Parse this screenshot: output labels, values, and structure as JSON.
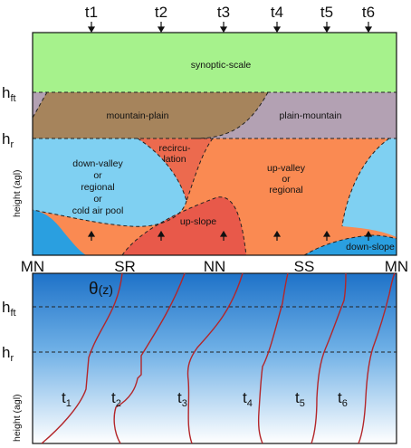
{
  "top_panel": {
    "time_labels": [
      "t1",
      "t2",
      "t3",
      "t4",
      "t5",
      "t6"
    ],
    "y_levels": [
      "h",
      "ft",
      "h",
      "r"
    ],
    "y_axis": "height (agl)",
    "x_labels": [
      "MN",
      "SR",
      "NN",
      "SS",
      "MN"
    ],
    "regions": {
      "synoptic": "synoptic-scale",
      "mountain_plain": "mountain-plain",
      "plain_mountain": "plain-mountain",
      "recirc_1": "recircu-",
      "recirc_2": "lation",
      "down_valley": [
        "down-valley",
        "or",
        "regional",
        "or",
        "cold air pool"
      ],
      "up_valley": [
        "up-valley",
        "or",
        "regional"
      ],
      "up_slope": "up-slope",
      "down_slope": "down-slope"
    },
    "colors": {
      "synoptic": "#a6f28c",
      "mountain_plain_band": "#b3a1b3",
      "mountain_plain": "#a6845c",
      "up_valley": "#fa8a52",
      "down_valley": "#7fd0f2",
      "recirculation": "#ec6a4e",
      "up_slope": "#e8594a",
      "down_slope": "#2a9fe0"
    }
  },
  "bottom_panel": {
    "theta_label": "θ",
    "theta_arg": "(z)",
    "y_levels": [
      "h",
      "ft",
      "h",
      "r"
    ],
    "y_axis": "height (agl)",
    "profile_labels": [
      "t",
      "1",
      "t",
      "2",
      "t",
      "3",
      "t",
      "4",
      "t",
      "5",
      "t",
      "6"
    ],
    "profile_color": "#b3262a"
  }
}
